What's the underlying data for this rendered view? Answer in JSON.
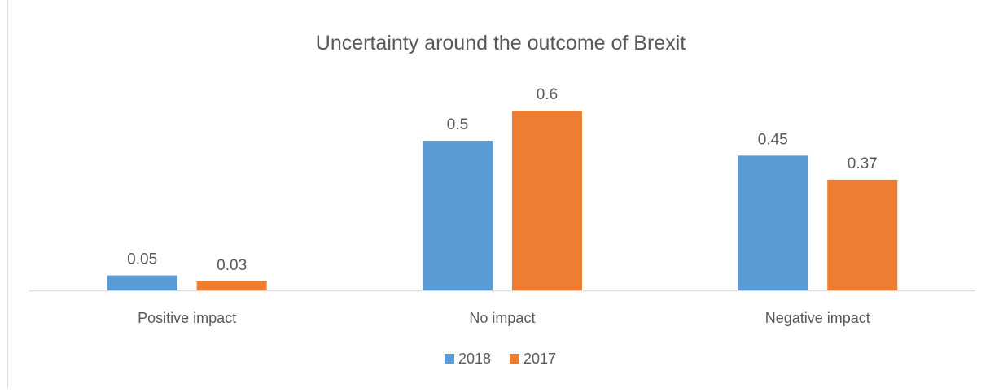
{
  "chart_data": {
    "type": "bar",
    "title": "Uncertainty around the outcome of Brexit",
    "categories": [
      "Positive impact",
      "No impact",
      "Negative impact"
    ],
    "series": [
      {
        "name": "2018",
        "values": [
          0.05,
          0.5,
          0.45
        ],
        "color": "#5B9BD5"
      },
      {
        "name": "2017",
        "values": [
          0.03,
          0.6,
          0.37
        ],
        "color": "#ED7D31"
      }
    ],
    "data_labels": [
      [
        "0.05",
        "0.5",
        "0.45"
      ],
      [
        "0.03",
        "0.6",
        "0.37"
      ]
    ],
    "ylim": [
      0,
      0.7
    ],
    "grid": false,
    "legend_position": "bottom",
    "axis_color": "#D9D9D9",
    "text_color": "#595959"
  }
}
